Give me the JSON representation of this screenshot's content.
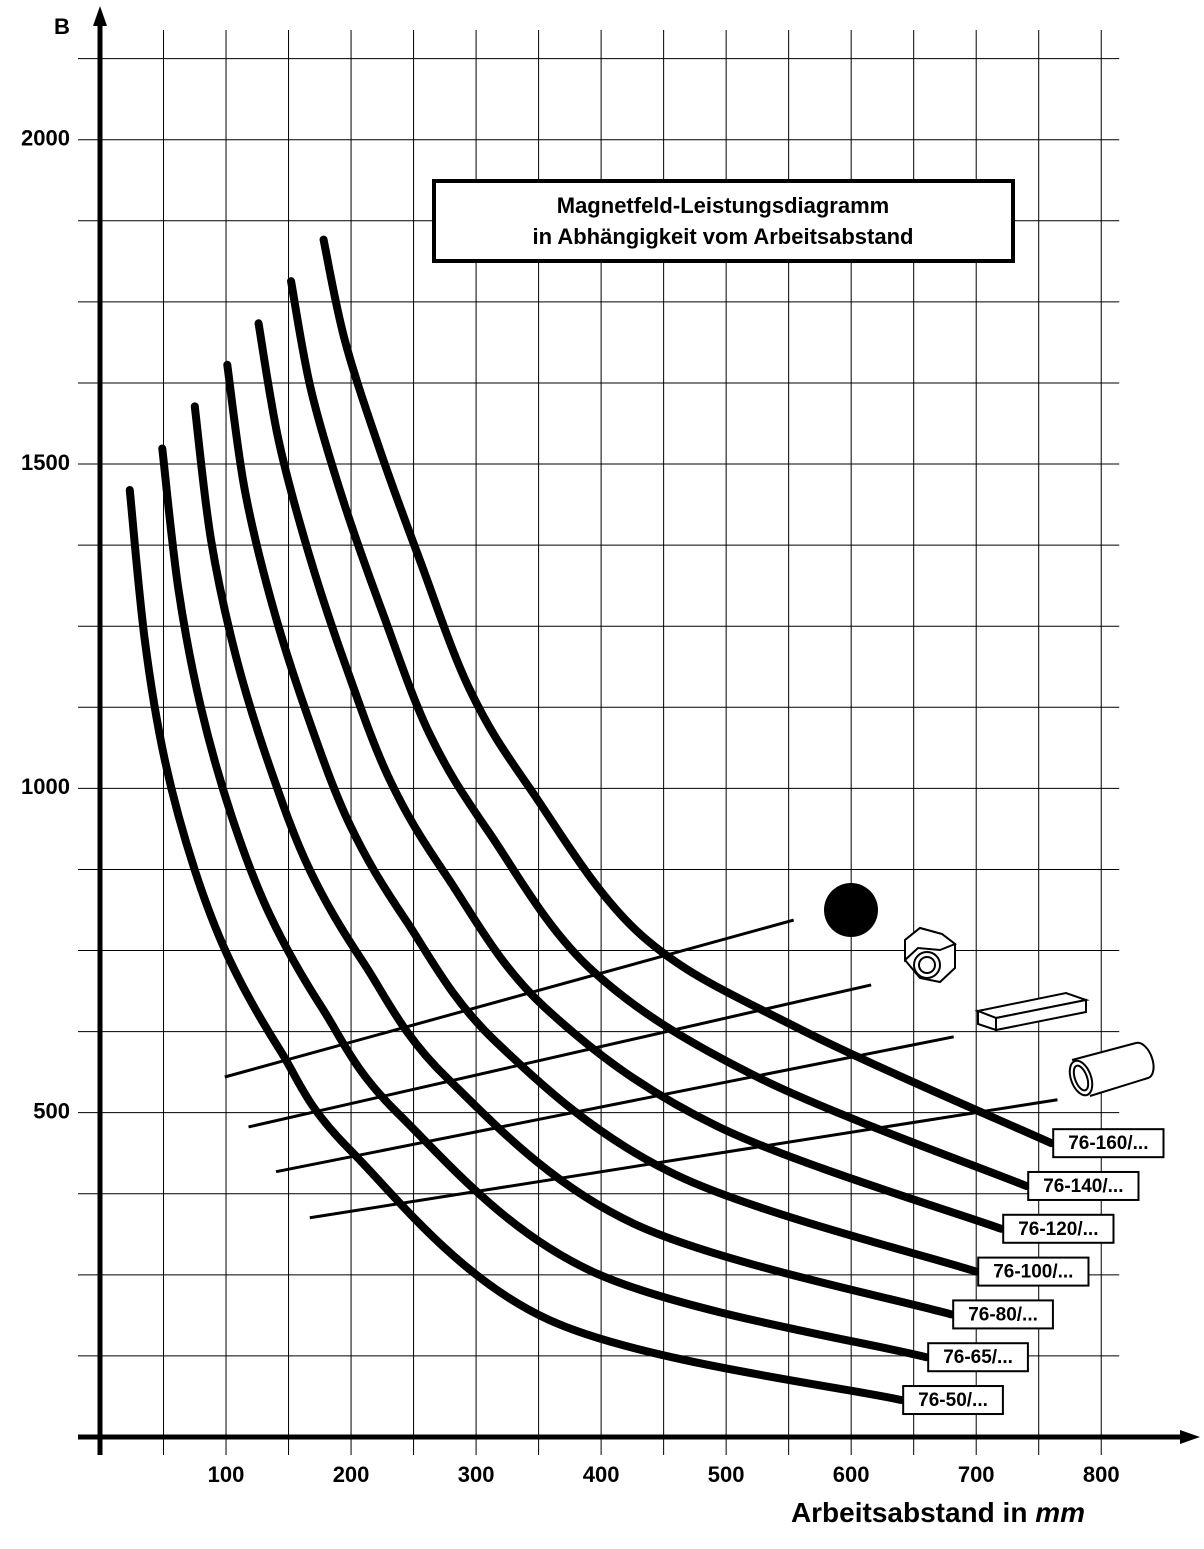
{
  "chart_data": {
    "type": "line",
    "title": [
      "Magnetfeld-Leistungsdiagramm",
      "in Abhängigkeit vom Arbeitsabstand"
    ],
    "y_label": "B",
    "x_label": "Arbeitsabstand in",
    "x_label_unit": "mm",
    "xlim": [
      0,
      875
    ],
    "ylim": [
      0,
      2200
    ],
    "xticks": [
      100,
      200,
      300,
      400,
      500,
      600,
      700,
      800
    ],
    "yticks": [
      500,
      1000,
      1500,
      2000
    ],
    "xgrid": [
      50,
      100,
      150,
      200,
      250,
      300,
      350,
      400,
      450,
      500,
      550,
      600,
      650,
      700,
      750,
      800
    ],
    "ygrid": [
      125,
      250,
      375,
      500,
      625,
      750,
      875,
      1000,
      1125,
      1250,
      1375,
      1500,
      1625,
      1750,
      1875,
      2000,
      2125
    ],
    "color": "#000000",
    "series": [
      {
        "name": "76-50/...",
        "x": [
          23,
          35,
          51,
          75,
          103,
          143,
          199,
          359,
          640
        ],
        "values": [
          1460,
          1229,
          1044,
          874,
          735,
          597,
          443,
          180,
          57
        ]
      },
      {
        "name": "76-65/...",
        "x": [
          49,
          62,
          80,
          105,
          135,
          176,
          238,
          393,
          660
        ],
        "values": [
          1524,
          1306,
          1124,
          954,
          805,
          664,
          498,
          255,
          123
        ]
      },
      {
        "name": "76-80/...",
        "x": [
          75,
          88,
          108,
          135,
          167,
          210,
          277,
          426,
          680
        ],
        "values": [
          1589,
          1383,
          1203,
          1033,
          874,
          731,
          553,
          329,
          189
        ]
      },
      {
        "name": "76-100/...",
        "x": [
          101,
          115,
          137,
          165,
          199,
          243,
          316,
          460,
          700
        ],
        "values": [
          1653,
          1460,
          1283,
          1113,
          944,
          799,
          609,
          404,
          255
        ]
      },
      {
        "name": "76-120/...",
        "x": [
          126,
          142,
          166,
          195,
          231,
          276,
          354,
          493,
          720
        ],
        "values": [
          1717,
          1537,
          1363,
          1193,
          1013,
          866,
          664,
          479,
          321
        ]
      },
      {
        "name": "76-140/...",
        "x": [
          152,
          168,
          194,
          225,
          263,
          310,
          393,
          527,
          740
        ],
        "values": [
          1782,
          1614,
          1442,
          1272,
          1083,
          933,
          719,
          553,
          387
        ]
      },
      {
        "name": "76-160/...",
        "x": [
          178,
          195,
          223,
          255,
          295,
          343,
          432,
          560,
          760
        ],
        "values": [
          1846,
          1691,
          1522,
          1352,
          1152,
          1000,
          774,
          628,
          453
        ]
      }
    ],
    "object_lines": [
      {
        "x": [
          99,
          554
        ],
        "values": [
          555,
          797
        ]
      },
      {
        "x": [
          118,
          616
        ],
        "values": [
          478,
          697
        ]
      },
      {
        "x": [
          140,
          682
        ],
        "values": [
          409,
          617
        ]
      },
      {
        "x": [
          167,
          765
        ],
        "values": [
          338,
          520
        ]
      }
    ]
  }
}
